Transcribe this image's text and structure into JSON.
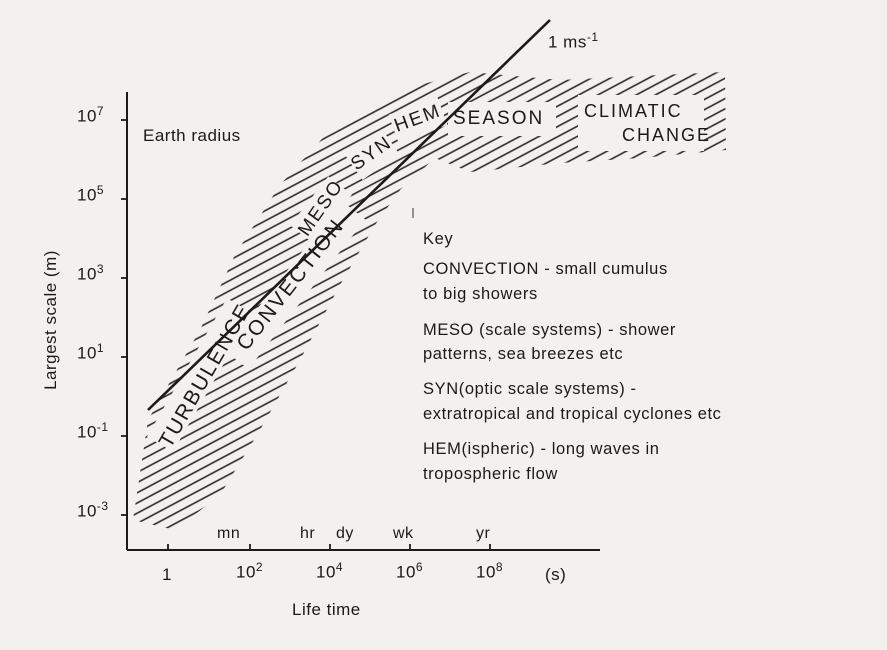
{
  "axes": {
    "y_label": "Largest scale (m)",
    "x_label": "Life time",
    "x_unit": "(s)",
    "y_ticks": [
      {
        "base": "10",
        "exp": "7"
      },
      {
        "base": "10",
        "exp": "5"
      },
      {
        "base": "10",
        "exp": "3"
      },
      {
        "base": "10",
        "exp": "1"
      },
      {
        "base": "10",
        "exp": "-1"
      },
      {
        "base": "10",
        "exp": "-3"
      }
    ],
    "x_ticks": [
      {
        "base": "1",
        "exp": ""
      },
      {
        "base": "10",
        "exp": "2"
      },
      {
        "base": "10",
        "exp": "4"
      },
      {
        "base": "10",
        "exp": "6"
      },
      {
        "base": "10",
        "exp": "8"
      }
    ],
    "x_time_marks": [
      "mn",
      "hr",
      "dy",
      "wk",
      "yr"
    ]
  },
  "annotations": {
    "earth_radius": "Earth radius",
    "velocity_line": "1 ms",
    "velocity_exp": "-1"
  },
  "regions": {
    "turbulence": "TURBULENCE",
    "convection": "CONVECTION",
    "meso": "MESO",
    "syn": "SYN",
    "hem": "HEM",
    "season": "SEASON",
    "climatic_1": "CLIMATIC",
    "climatic_2": "CHANGE"
  },
  "key": {
    "title": "Key",
    "lines": [
      "CONVECTION - small cumulus",
      "to big showers",
      "MESO (scale systems) - shower",
      "patterns, sea breezes etc",
      "SYN(optic scale systems) -",
      "extratropical and tropical cyclones etc",
      "HEM(ispheric) - long waves in",
      "tropospheric flow"
    ]
  }
}
